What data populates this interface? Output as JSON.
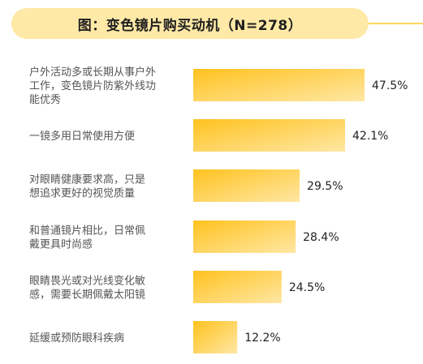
{
  "chart_data": {
    "type": "bar",
    "orientation": "horizontal",
    "title": "图：变色镜片购买动机（N=278）",
    "categories": [
      [
        "户外活动多或长期从事户外",
        "工作，变色镜片防紫外线功",
        "能优秀"
      ],
      [
        "一镜多用日常使用方便"
      ],
      [
        "对眼睛健康要求高，只是",
        "想追求更好的视觉质量"
      ],
      [
        "和普通镜片相比，日常佩",
        "戴更具时尚感"
      ],
      [
        "眼睛畏光或对光线变化敏",
        "感，需要长期佩戴太阳镜"
      ],
      [
        "延缓或预防眼科疾病"
      ]
    ],
    "values": [
      47.5,
      42.1,
      29.5,
      28.4,
      24.5,
      12.2
    ],
    "value_labels": [
      "47.5%",
      "42.1%",
      "29.5%",
      "28.4%",
      "24.5%",
      "12.2%"
    ],
    "unit": "%",
    "colors": {
      "bar_start": "#ffc21f",
      "bar_end": "#ffe7a4",
      "title_bg": "#ffe9a6",
      "accent_line": "#ffd75e"
    }
  }
}
